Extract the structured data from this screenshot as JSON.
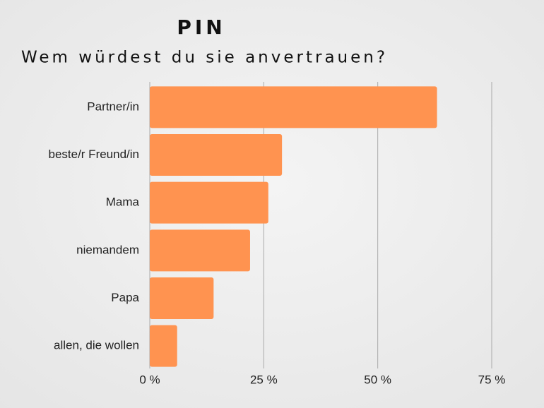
{
  "chart_data": {
    "type": "hbar",
    "title": "PIN",
    "subtitle": "Wem würdest du sie anvertrauen?",
    "categories": [
      "Partner/in",
      "beste/r Freund/in",
      "Mama",
      "niemandem",
      "Papa",
      "allen, die wollen"
    ],
    "values": [
      63,
      29,
      26,
      22,
      14,
      6
    ],
    "color": "#ff9350",
    "xlim": [
      0,
      75
    ],
    "xticks": [
      {
        "value": 0,
        "label": "0 %"
      },
      {
        "value": 25,
        "label": "25 %"
      },
      {
        "value": 50,
        "label": "50 %"
      },
      {
        "value": 75,
        "label": "75 %"
      }
    ],
    "grid": true
  }
}
